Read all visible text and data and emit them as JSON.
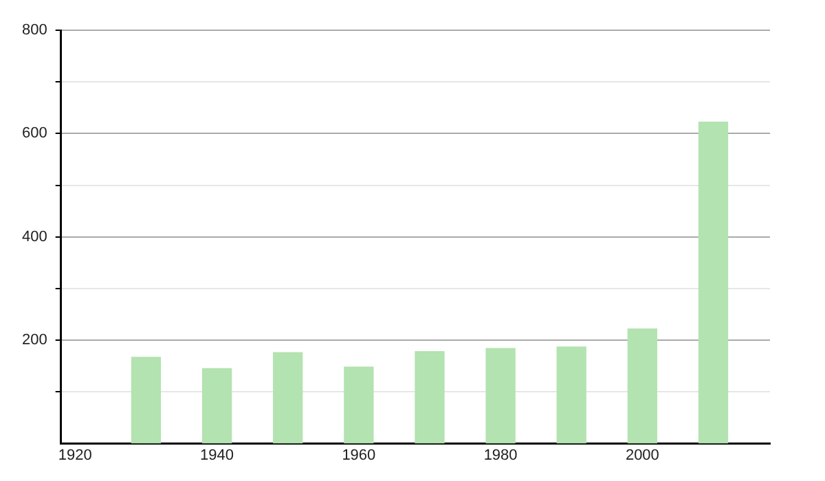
{
  "chart_data": {
    "type": "bar",
    "x": [
      1930,
      1940,
      1950,
      1960,
      1970,
      1980,
      1990,
      2000,
      2010
    ],
    "values": [
      168,
      146,
      177,
      149,
      179,
      185,
      188,
      223,
      623
    ],
    "color": "#b3e3b0",
    "xlim": [
      1918,
      2018
    ],
    "xticks": [
      1920,
      1940,
      1960,
      1980,
      2000
    ],
    "ylim": [
      0,
      800
    ],
    "yticks": [
      {
        "value": 100,
        "label": null
      },
      200,
      {
        "value": 300,
        "label": null
      },
      400,
      {
        "value": 500,
        "label": null
      },
      600,
      {
        "value": 700,
        "label": null
      },
      800
    ],
    "grid": "y"
  }
}
